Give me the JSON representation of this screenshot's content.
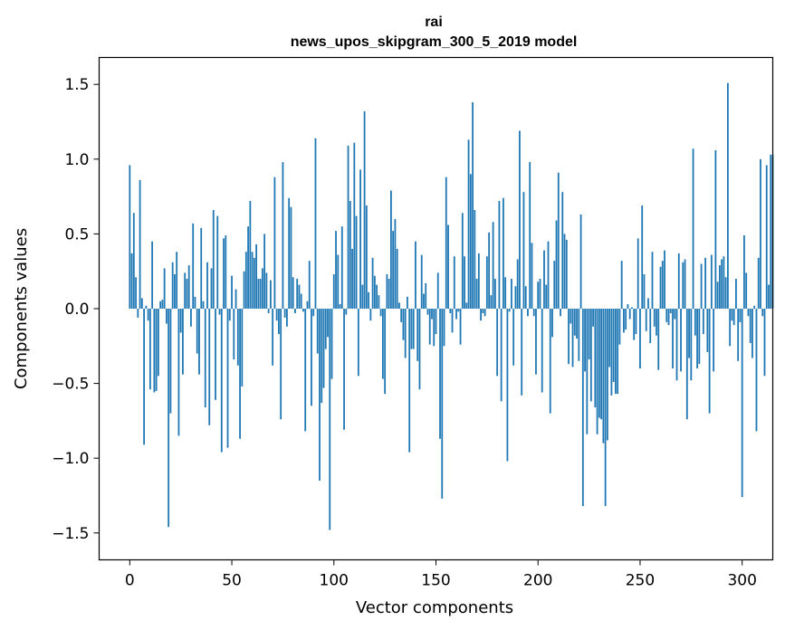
{
  "chart_data": {
    "type": "bar",
    "title": "rai",
    "subtitle": "news_upos_skipgram_300_5_2019 model",
    "xlabel": "Vector components",
    "ylabel": "Components values",
    "xlim": [
      -15,
      315
    ],
    "ylim": [
      -1.68,
      1.68
    ],
    "x_ticks": [
      0,
      50,
      100,
      150,
      200,
      250,
      300
    ],
    "x_tick_labels": [
      "0",
      "50",
      "100",
      "150",
      "200",
      "250",
      "300"
    ],
    "y_ticks": [
      1.5,
      1.0,
      0.5,
      0.0,
      -0.5,
      -1.0,
      -1.5
    ],
    "y_tick_labels": [
      "1.5",
      "1.0",
      "0.5",
      "0.0",
      "−0.5",
      "−1.0",
      "−1.5"
    ],
    "bar_color": "#1f77b4",
    "values": [
      0.96,
      0.37,
      0.64,
      0.21,
      -0.06,
      0.86,
      0.07,
      -0.91,
      0.02,
      -0.08,
      -0.54,
      0.45,
      -0.56,
      -0.55,
      -0.45,
      0.05,
      0.06,
      0.27,
      -0.1,
      -1.46,
      -0.7,
      0.31,
      0.23,
      0.38,
      -0.85,
      -0.16,
      -0.44,
      0.24,
      0.2,
      0.29,
      -0.12,
      0.57,
      0.08,
      -0.3,
      -0.44,
      0.54,
      0.05,
      -0.66,
      0.31,
      -0.78,
      0.27,
      0.66,
      -0.61,
      0.62,
      -0.04,
      -0.96,
      0.47,
      0.49,
      -0.93,
      -0.08,
      0.22,
      -0.34,
      0.13,
      -0.38,
      -0.87,
      -0.52,
      0.25,
      0.38,
      0.55,
      0.72,
      0.38,
      0.34,
      0.43,
      0.2,
      0.2,
      0.27,
      0.5,
      0.24,
      -0.03,
      0.19,
      -0.38,
      0.88,
      -0.08,
      -0.17,
      -0.74,
      0.98,
      -0.06,
      -0.12,
      0.74,
      0.68,
      0.21,
      -0.03,
      0.2,
      0.16,
      0.1,
      -0.02,
      -0.82,
      0.05,
      0.32,
      -0.65,
      -0.05,
      1.14,
      -0.3,
      -1.15,
      -0.63,
      -0.53,
      -0.27,
      -0.19,
      -1.48,
      -0.47,
      0.23,
      0.52,
      0.36,
      0.03,
      0.55,
      -0.81,
      -0.04,
      1.09,
      0.72,
      0.4,
      1.11,
      0.62,
      -0.45,
      0.93,
      0.16,
      1.32,
      0.69,
      0.11,
      -0.08,
      0.34,
      0.22,
      0.16,
      0.09,
      -0.05,
      -0.47,
      -0.57,
      0.23,
      0.2,
      0.79,
      0.52,
      0.6,
      0.4,
      0.04,
      -0.09,
      -0.21,
      -0.33,
      0.08,
      -0.96,
      -0.27,
      -0.27,
      0.45,
      -0.35,
      -0.54,
      0.36,
      0.1,
      0.17,
      -0.04,
      -0.24,
      -0.07,
      -0.25,
      -0.17,
      0.24,
      -0.87,
      -1.27,
      -0.25,
      0.88,
      0.56,
      -0.03,
      -0.16,
      0.35,
      -0.07,
      -0.02,
      -0.24,
      0.64,
      0.35,
      0.04,
      1.13,
      0.9,
      1.38,
      0.66,
      0.2,
      0.37,
      -0.08,
      -0.03,
      -0.05,
      0.35,
      0.51,
      0.09,
      0.58,
      0.2,
      -0.45,
      0.72,
      -0.62,
      0.74,
      0.21,
      -1.02,
      -0.02,
      0.2,
      -0.38,
      0.15,
      0.33,
      1.19,
      -0.58,
      0.78,
      0.15,
      -0.05,
      0.98,
      0.44,
      -0.05,
      -0.44,
      0.18,
      0.2,
      -0.56,
      0.39,
      0.16,
      0.45,
      -0.7,
      -0.19,
      0.32,
      0.59,
      0.91,
      -0.05,
      0.78,
      0.5,
      0.46,
      -0.37,
      -0.1,
      -0.39,
      -0.18,
      -0.2,
      -0.35,
      0.63,
      -1.32,
      -0.42,
      -0.84,
      -0.34,
      -0.62,
      -0.12,
      -0.66,
      -0.84,
      -0.73,
      -0.74,
      -0.9,
      -1.32,
      -0.88,
      -0.39,
      -0.58,
      -0.49,
      -0.57,
      -0.57,
      -0.24,
      0.32,
      -0.16,
      -0.14,
      0.03,
      -0.07,
      0.01,
      -0.21,
      -0.17,
      0.47,
      -0.4,
      0.69,
      0.23,
      -0.15,
      0.07,
      -0.23,
      0.38,
      -0.12,
      -0.18,
      -0.41,
      0.28,
      0.32,
      0.39,
      -0.09,
      -0.11,
      -0.03,
      -0.4,
      -0.07,
      -0.48,
      0.37,
      -0.42,
      0.31,
      0.33,
      -0.74,
      -0.33,
      -0.48,
      1.07,
      -0.18,
      -0.4,
      -0.37,
      0.3,
      -0.17,
      0.34,
      -0.29,
      -0.7,
      0.36,
      -0.42,
      1.06,
      0.18,
      0.29,
      0.33,
      0.35,
      0.21,
      1.51,
      -0.25,
      -0.08,
      -0.11,
      0.2,
      -0.35,
      -0.09,
      -1.26,
      0.49,
      0.24,
      -0.05,
      -0.23,
      -0.33,
      0.02,
      -0.82,
      0.34,
      1.0,
      -0.05,
      -0.45,
      0.96,
      0.16,
      1.03,
      1.03
    ]
  }
}
